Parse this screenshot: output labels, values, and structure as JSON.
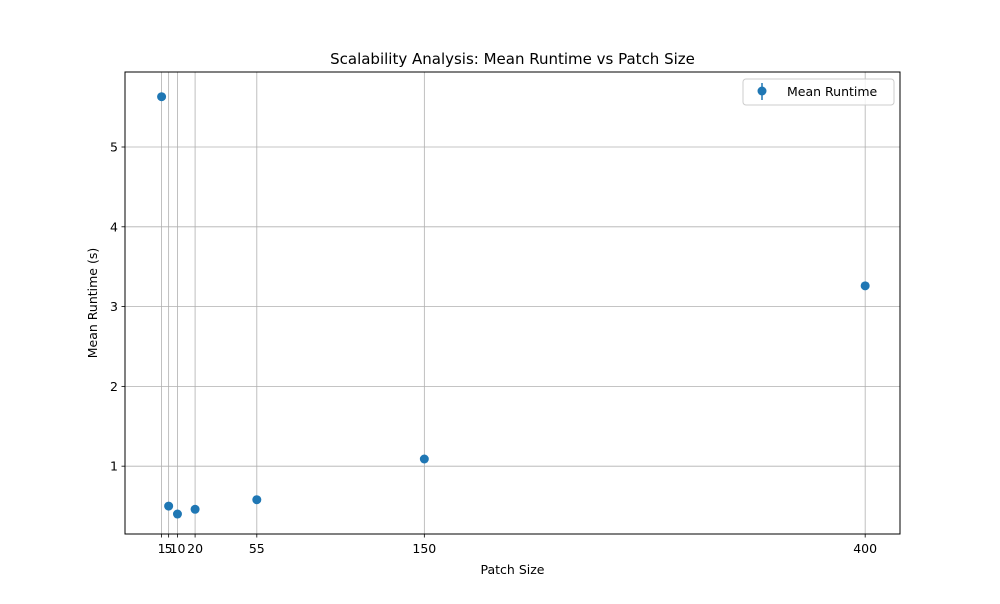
{
  "chart_data": {
    "type": "scatter",
    "title": "Scalability Analysis: Mean Runtime vs Patch Size",
    "xlabel": "Patch Size",
    "ylabel": "Mean Runtime (s)",
    "xlim": [
      -19.75,
      419.75
    ],
    "ylim": [
      0.15,
      5.94
    ],
    "grid": true,
    "legend_position": "top-right",
    "x_ticks": [
      1,
      5,
      10,
      20,
      55,
      150,
      400
    ],
    "x_tick_labels": [
      "1",
      "5",
      "10",
      "20",
      "55",
      "150",
      "400"
    ],
    "y_ticks": [
      1,
      2,
      3,
      4,
      5
    ],
    "y_tick_labels": [
      "1",
      "2",
      "3",
      "4",
      "5"
    ],
    "series": [
      {
        "name": "Mean Runtime",
        "color": "#1f77b4",
        "x": [
          1,
          5,
          10,
          20,
          55,
          150,
          400
        ],
        "y": [
          5.63,
          0.5,
          0.4,
          0.46,
          0.58,
          1.09,
          3.26
        ]
      }
    ]
  }
}
